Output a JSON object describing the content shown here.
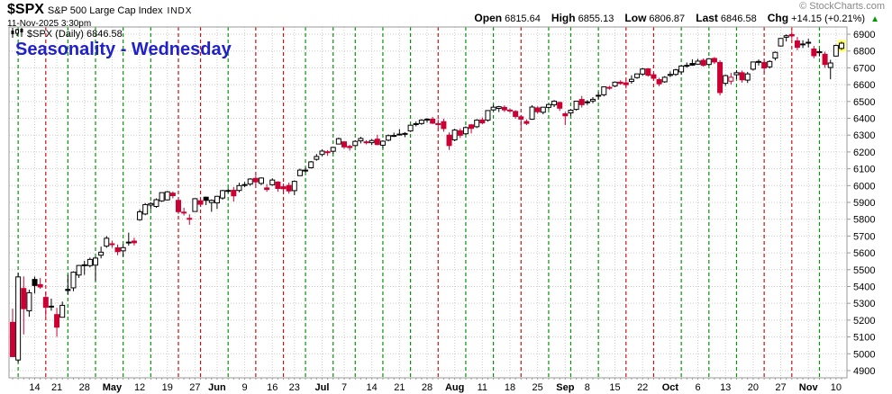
{
  "header": {
    "symbol": "$SPX",
    "name": "S&P 500 Large Cap Index",
    "exchange": "INDX",
    "datetime": "11-Nov-2025 3:30pm",
    "copyright": "© StockCharts.com",
    "quote": {
      "items": [
        {
          "label": "Open",
          "value": "6815.64"
        },
        {
          "label": "High",
          "value": "6855.13"
        },
        {
          "label": "Low",
          "value": "6806.87"
        },
        {
          "label": "Last",
          "value": "6846.58"
        },
        {
          "label": "Chg",
          "value": "+14.15 (+0.21%)"
        }
      ],
      "arrow": "▲",
      "direction": "up"
    }
  },
  "legend": {
    "text": "$SPX (Daily) 6846.58"
  },
  "annotation": {
    "text": "Seasonality - Wednesday",
    "color": "#2020CC"
  },
  "colors": {
    "up": "#000000",
    "down": "#CC0033",
    "wed_up": "#009900",
    "wed_down": "#CC1111",
    "grid": "#CCCCCC",
    "axis": "#999999",
    "text": "#000000",
    "highlight": "#FFFF66",
    "arrow_green": "#009900"
  },
  "chart_data": {
    "type": "candlestick",
    "title": "$SPX (Daily)",
    "last_value": 6846.58,
    "ylim": [
      4857,
      6943
    ],
    "yticks": [
      4900,
      5000,
      5100,
      5200,
      5300,
      5400,
      5500,
      5600,
      5700,
      5800,
      5900,
      6000,
      6100,
      6200,
      6300,
      6400,
      6500,
      6600,
      6700,
      6800,
      6900
    ],
    "grid": true,
    "legend_position": "top-left",
    "prev_close": 5062,
    "columns": [
      "date",
      "open",
      "high",
      "low",
      "close"
    ],
    "weeks": [
      {
        "i": 4,
        "label": "14"
      },
      {
        "i": 8,
        "label": "21"
      },
      {
        "i": 13,
        "label": "28"
      },
      {
        "i": 18,
        "label": "May",
        "m": 1
      },
      {
        "i": 23,
        "label": "12"
      },
      {
        "i": 28,
        "label": "19"
      },
      {
        "i": 33,
        "label": "27"
      },
      {
        "i": 37,
        "label": "Jun",
        "m": 1
      },
      {
        "i": 42,
        "label": "9"
      },
      {
        "i": 47,
        "label": "16"
      },
      {
        "i": 51,
        "label": "23"
      },
      {
        "i": 56,
        "label": "Jul",
        "m": 1
      },
      {
        "i": 60,
        "label": "7"
      },
      {
        "i": 65,
        "label": "14"
      },
      {
        "i": 70,
        "label": "21"
      },
      {
        "i": 75,
        "label": "28"
      },
      {
        "i": 80,
        "label": "Aug",
        "m": 1
      },
      {
        "i": 85,
        "label": "11"
      },
      {
        "i": 90,
        "label": "18"
      },
      {
        "i": 95,
        "label": "25"
      },
      {
        "i": 100,
        "label": "Sep",
        "m": 1
      },
      {
        "i": 104,
        "label": "8"
      },
      {
        "i": 109,
        "label": "15"
      },
      {
        "i": 114,
        "label": "22"
      },
      {
        "i": 119,
        "label": "Oct",
        "m": 1
      },
      {
        "i": 124,
        "label": "6"
      },
      {
        "i": 129,
        "label": "13"
      },
      {
        "i": 134,
        "label": "20"
      },
      {
        "i": 139,
        "label": "27"
      },
      {
        "i": 144,
        "label": "Nov",
        "m": 1
      },
      {
        "i": 149,
        "label": "10"
      }
    ],
    "candles": [
      [
        "2025-04-08",
        5187,
        5268,
        4982,
        4983
      ],
      [
        "2025-04-09",
        4963,
        5481,
        4948,
        5457
      ],
      [
        "2025-04-10",
        5388,
        5460,
        5115,
        5268
      ],
      [
        "2025-04-11",
        5255,
        5381,
        5220,
        5363
      ],
      [
        "2025-04-14",
        5442,
        5459,
        5358,
        5406
      ],
      [
        "2025-04-15",
        5411,
        5450,
        5386,
        5397
      ],
      [
        "2025-04-16",
        5335,
        5367,
        5221,
        5276
      ],
      [
        "2025-04-17",
        5281,
        5328,
        5256,
        5283
      ],
      [
        "2025-04-21",
        5233,
        5273,
        5101,
        5158
      ],
      [
        "2025-04-22",
        5217,
        5310,
        5217,
        5288
      ],
      [
        "2025-04-23",
        5383,
        5469,
        5353,
        5376
      ],
      [
        "2025-04-24",
        5392,
        5490,
        5372,
        5485
      ],
      [
        "2025-04-25",
        5468,
        5528,
        5451,
        5525
      ],
      [
        "2025-04-28",
        5529,
        5553,
        5469,
        5529
      ],
      [
        "2025-04-29",
        5524,
        5572,
        5513,
        5561
      ],
      [
        "2025-04-30",
        5527,
        5578,
        5433,
        5569
      ],
      [
        "2025-05-01",
        5586,
        5637,
        5567,
        5604
      ],
      [
        "2025-05-02",
        5640,
        5700,
        5630,
        5687
      ],
      [
        "2025-05-05",
        5654,
        5672,
        5630,
        5650
      ],
      [
        "2025-05-06",
        5630,
        5650,
        5586,
        5607
      ],
      [
        "2025-05-07",
        5612,
        5651,
        5578,
        5631
      ],
      [
        "2025-05-08",
        5659,
        5720,
        5643,
        5664
      ],
      [
        "2025-05-09",
        5670,
        5690,
        5644,
        5660
      ],
      [
        "2025-05-12",
        5797,
        5858,
        5791,
        5844
      ],
      [
        "2025-05-13",
        5831,
        5896,
        5824,
        5887
      ],
      [
        "2025-05-14",
        5884,
        5901,
        5859,
        5893
      ],
      [
        "2025-05-15",
        5876,
        5924,
        5868,
        5916
      ],
      [
        "2025-05-16",
        5909,
        5959,
        5903,
        5958
      ],
      [
        "2025-05-19",
        5915,
        5968,
        5911,
        5963
      ],
      [
        "2025-05-20",
        5955,
        5965,
        5924,
        5940
      ],
      [
        "2025-05-21",
        5912,
        5932,
        5832,
        5845
      ],
      [
        "2025-05-22",
        5842,
        5868,
        5822,
        5842
      ],
      [
        "2025-05-23",
        5805,
        5829,
        5767,
        5803
      ],
      [
        "2025-05-27",
        5846,
        5925,
        5846,
        5922
      ],
      [
        "2025-05-28",
        5910,
        5928,
        5874,
        5889
      ],
      [
        "2025-05-29",
        5931,
        5934,
        5884,
        5912
      ],
      [
        "2025-05-30",
        5899,
        5918,
        5844,
        5912
      ],
      [
        "2025-06-02",
        5897,
        5939,
        5861,
        5936
      ],
      [
        "2025-06-03",
        5926,
        5975,
        5916,
        5970
      ],
      [
        "2025-06-04",
        5971,
        5984,
        5958,
        5971
      ],
      [
        "2025-06-05",
        5972,
        5992,
        5905,
        5939
      ],
      [
        "2025-06-06",
        5971,
        6017,
        5960,
        6000
      ],
      [
        "2025-06-09",
        6001,
        6022,
        5990,
        6006
      ],
      [
        "2025-06-10",
        6009,
        6044,
        5998,
        6039
      ],
      [
        "2025-06-11",
        6043,
        6059,
        6002,
        6022
      ],
      [
        "2025-06-12",
        6013,
        6049,
        6003,
        6045
      ],
      [
        "2025-06-13",
        5986,
        6009,
        5963,
        5977
      ],
      [
        "2025-06-16",
        6005,
        6043,
        5999,
        6033
      ],
      [
        "2025-06-17",
        6021,
        6026,
        5963,
        5983
      ],
      [
        "2025-06-18",
        5993,
        6012,
        5963,
        5981
      ],
      [
        "2025-06-20",
        6001,
        6018,
        5952,
        5968
      ],
      [
        "2025-06-23",
        5970,
        6031,
        5943,
        6025
      ],
      [
        "2025-06-24",
        6059,
        6101,
        6059,
        6092
      ],
      [
        "2025-06-25",
        6091,
        6108,
        6078,
        6092
      ],
      [
        "2025-06-26",
        6106,
        6146,
        6101,
        6141
      ],
      [
        "2025-06-27",
        6156,
        6188,
        6148,
        6173
      ],
      [
        "2025-06-30",
        6185,
        6215,
        6174,
        6205
      ],
      [
        "2025-07-01",
        6201,
        6211,
        6177,
        6198
      ],
      [
        "2025-07-02",
        6204,
        6228,
        6190,
        6227
      ],
      [
        "2025-07-03",
        6247,
        6285,
        6246,
        6279
      ],
      [
        "2025-07-07",
        6260,
        6263,
        6218,
        6230
      ],
      [
        "2025-07-08",
        6233,
        6243,
        6208,
        6226
      ],
      [
        "2025-07-09",
        6238,
        6269,
        6232,
        6263
      ],
      [
        "2025-07-10",
        6266,
        6290,
        6251,
        6280
      ],
      [
        "2025-07-11",
        6256,
        6270,
        6245,
        6260
      ],
      [
        "2025-07-14",
        6255,
        6277,
        6241,
        6268
      ],
      [
        "2025-07-15",
        6276,
        6302,
        6240,
        6244
      ],
      [
        "2025-07-16",
        6240,
        6268,
        6222,
        6264
      ],
      [
        "2025-07-17",
        6270,
        6304,
        6263,
        6297
      ],
      [
        "2025-07-18",
        6298,
        6315,
        6289,
        6297
      ],
      [
        "2025-07-21",
        6302,
        6336,
        6298,
        6306
      ],
      [
        "2025-07-22",
        6308,
        6318,
        6288,
        6310
      ],
      [
        "2025-07-23",
        6325,
        6360,
        6319,
        6359
      ],
      [
        "2025-07-24",
        6368,
        6381,
        6352,
        6363
      ],
      [
        "2025-07-25",
        6369,
        6395,
        6361,
        6389
      ],
      [
        "2025-07-28",
        6395,
        6401,
        6374,
        6390
      ],
      [
        "2025-07-29",
        6395,
        6409,
        6366,
        6371
      ],
      [
        "2025-07-30",
        6368,
        6394,
        6342,
        6363
      ],
      [
        "2025-07-31",
        6380,
        6398,
        6320,
        6339
      ],
      [
        "2025-08-01",
        6300,
        6316,
        6212,
        6238
      ],
      [
        "2025-08-04",
        6272,
        6338,
        6264,
        6330
      ],
      [
        "2025-08-05",
        6326,
        6340,
        6283,
        6299
      ],
      [
        "2025-08-06",
        6308,
        6352,
        6301,
        6345
      ],
      [
        "2025-08-07",
        6361,
        6366,
        6310,
        6340
      ],
      [
        "2025-08-08",
        6350,
        6395,
        6342,
        6389
      ],
      [
        "2025-08-11",
        6390,
        6405,
        6365,
        6373
      ],
      [
        "2025-08-12",
        6389,
        6447,
        6380,
        6446
      ],
      [
        "2025-08-13",
        6450,
        6480,
        6445,
        6466
      ],
      [
        "2025-08-14",
        6459,
        6474,
        6437,
        6469
      ],
      [
        "2025-08-15",
        6465,
        6477,
        6438,
        6450
      ],
      [
        "2025-08-18",
        6448,
        6459,
        6432,
        6449
      ],
      [
        "2025-08-19",
        6441,
        6448,
        6398,
        6411
      ],
      [
        "2025-08-20",
        6409,
        6420,
        6344,
        6395
      ],
      [
        "2025-08-21",
        6381,
        6394,
        6360,
        6370
      ],
      [
        "2025-08-22",
        6395,
        6478,
        6391,
        6467
      ],
      [
        "2025-08-25",
        6462,
        6471,
        6428,
        6439
      ],
      [
        "2025-08-26",
        6436,
        6468,
        6424,
        6466
      ],
      [
        "2025-08-27",
        6465,
        6486,
        6455,
        6482
      ],
      [
        "2025-08-28",
        6480,
        6508,
        6467,
        6502
      ],
      [
        "2025-08-29",
        6494,
        6499,
        6444,
        6460
      ],
      [
        "2025-09-02",
        6427,
        6439,
        6360,
        6415
      ],
      [
        "2025-09-03",
        6432,
        6453,
        6415,
        6448
      ],
      [
        "2025-09-04",
        6453,
        6503,
        6446,
        6502
      ],
      [
        "2025-09-05",
        6512,
        6533,
        6464,
        6481
      ],
      [
        "2025-09-08",
        6498,
        6508,
        6479,
        6495
      ],
      [
        "2025-09-09",
        6503,
        6526,
        6490,
        6513
      ],
      [
        "2025-09-10",
        6537,
        6555,
        6512,
        6532
      ],
      [
        "2025-09-11",
        6540,
        6590,
        6530,
        6587
      ],
      [
        "2025-09-12",
        6582,
        6593,
        6570,
        6584
      ],
      [
        "2025-09-15",
        6592,
        6619,
        6585,
        6615
      ],
      [
        "2025-09-16",
        6615,
        6626,
        6600,
        6607
      ],
      [
        "2025-09-17",
        6611,
        6628,
        6577,
        6600
      ],
      [
        "2025-09-18",
        6619,
        6656,
        6606,
        6632
      ],
      [
        "2025-09-19",
        6642,
        6666,
        6635,
        6664
      ],
      [
        "2025-09-22",
        6663,
        6699,
        6653,
        6693
      ],
      [
        "2025-09-23",
        6694,
        6699,
        6648,
        6656
      ],
      [
        "2025-09-24",
        6659,
        6670,
        6631,
        6638
      ],
      [
        "2025-09-25",
        6630,
        6641,
        6591,
        6605
      ],
      [
        "2025-09-26",
        6617,
        6651,
        6611,
        6644
      ],
      [
        "2025-09-29",
        6655,
        6679,
        6645,
        6661
      ],
      [
        "2025-09-30",
        6661,
        6694,
        6652,
        6688
      ],
      [
        "2025-10-01",
        6676,
        6715,
        6659,
        6711
      ],
      [
        "2025-10-02",
        6711,
        6732,
        6701,
        6715
      ],
      [
        "2025-10-03",
        6726,
        6751,
        6712,
        6716
      ],
      [
        "2025-10-06",
        6722,
        6754,
        6720,
        6740
      ],
      [
        "2025-10-07",
        6745,
        6756,
        6708,
        6715
      ],
      [
        "2025-10-08",
        6720,
        6758,
        6714,
        6754
      ],
      [
        "2025-10-09",
        6756,
        6764,
        6723,
        6735
      ],
      [
        "2025-10-10",
        6732,
        6745,
        6536,
        6553
      ],
      [
        "2025-10-13",
        6608,
        6660,
        6593,
        6654
      ],
      [
        "2025-10-14",
        6621,
        6670,
        6601,
        6644
      ],
      [
        "2025-10-15",
        6659,
        6686,
        6633,
        6671
      ],
      [
        "2025-10-16",
        6671,
        6684,
        6612,
        6629
      ],
      [
        "2025-10-17",
        6627,
        6676,
        6610,
        6664
      ],
      [
        "2025-10-20",
        6692,
        6736,
        6684,
        6735
      ],
      [
        "2025-10-21",
        6738,
        6750,
        6714,
        6735
      ],
      [
        "2025-10-22",
        6732,
        6741,
        6672,
        6699
      ],
      [
        "2025-10-23",
        6706,
        6745,
        6696,
        6738
      ],
      [
        "2025-10-24",
        6758,
        6797,
        6744,
        6792
      ],
      [
        "2025-10-27",
        6830,
        6877,
        6827,
        6875
      ],
      [
        "2025-10-28",
        6882,
        6899,
        6857,
        6891
      ],
      [
        "2025-10-29",
        6898,
        6920,
        6870,
        6890
      ],
      [
        "2025-10-30",
        6860,
        6883,
        6805,
        6822
      ],
      [
        "2025-10-31",
        6842,
        6864,
        6818,
        6840
      ],
      [
        "2025-11-03",
        6851,
        6873,
        6821,
        6852
      ],
      [
        "2025-11-04",
        6812,
        6830,
        6757,
        6772
      ],
      [
        "2025-11-05",
        6790,
        6811,
        6768,
        6796
      ],
      [
        "2025-11-06",
        6781,
        6796,
        6700,
        6720
      ],
      [
        "2025-11-07",
        6702,
        6748,
        6632,
        6729
      ],
      [
        "2025-11-10",
        6770,
        6838,
        6770,
        6833
      ],
      [
        "2025-11-11",
        6815.64,
        6855.13,
        6806.87,
        6846.58
      ]
    ]
  }
}
